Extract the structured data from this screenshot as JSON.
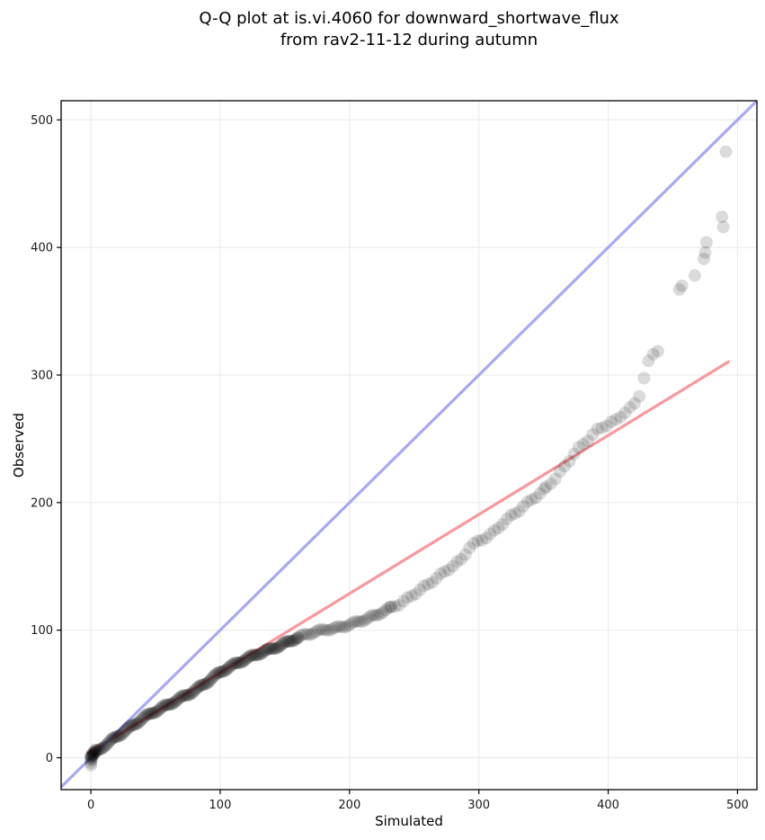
{
  "chart_data": {
    "type": "scatter",
    "title_line1": "Q-Q plot at is.vi.4060 for downward_shortwave_flux",
    "title_line2": "from rav2-11-12 during autumn",
    "xlabel": "Simulated",
    "ylabel": "Observed",
    "xlim": [
      -23,
      515
    ],
    "ylim": [
      -25,
      515
    ],
    "xticks": [
      0,
      100,
      200,
      300,
      400,
      500
    ],
    "yticks": [
      0,
      100,
      200,
      300,
      400,
      500
    ],
    "grid": true,
    "grid_color": "#ededed",
    "legend": "none",
    "identity_line": {
      "equation": "y = x",
      "color": "#a9a9f0",
      "width": 3.2
    },
    "fit_line": {
      "slope": 0.62,
      "intercept": 4.7,
      "x_range": [
        -2,
        493
      ],
      "color": "#f9989d",
      "width": 3.2
    },
    "point_style": {
      "color": "#000000",
      "opacity": 0.14,
      "radius": 7
    },
    "qq_curve_control_points": [
      [
        0,
        0
      ],
      [
        10,
        9
      ],
      [
        20,
        17
      ],
      [
        30,
        24
      ],
      [
        40,
        31
      ],
      [
        50,
        36
      ],
      [
        60,
        41
      ],
      [
        70,
        47
      ],
      [
        80,
        53
      ],
      [
        90,
        60
      ],
      [
        100,
        67
      ],
      [
        110,
        72
      ],
      [
        120,
        77
      ],
      [
        130,
        82
      ],
      [
        140,
        86
      ],
      [
        150,
        90
      ],
      [
        160,
        94
      ],
      [
        170,
        97
      ],
      [
        180,
        100
      ],
      [
        190,
        102
      ],
      [
        200,
        105
      ],
      [
        210,
        108
      ],
      [
        220,
        111
      ],
      [
        230,
        116
      ],
      [
        240,
        121
      ],
      [
        250,
        129
      ],
      [
        260,
        136
      ],
      [
        270,
        143
      ],
      [
        280,
        150
      ],
      [
        286,
        154
      ],
      [
        293,
        165
      ],
      [
        300,
        170
      ],
      [
        310,
        176
      ],
      [
        320,
        186
      ],
      [
        330,
        193
      ],
      [
        340,
        201
      ],
      [
        350,
        209
      ],
      [
        358,
        218
      ],
      [
        366,
        228
      ],
      [
        375,
        241
      ],
      [
        383,
        248
      ],
      [
        391,
        256
      ],
      [
        400,
        261
      ],
      [
        406,
        264
      ],
      [
        412,
        270
      ],
      [
        418,
        275
      ],
      [
        423,
        281
      ],
      [
        427,
        296
      ],
      [
        430,
        307
      ],
      [
        433,
        316
      ],
      [
        437,
        318
      ],
      [
        441,
        323
      ]
    ],
    "dense_sampling": [
      {
        "x0": 0,
        "x1": 160,
        "step": 1.0
      },
      {
        "x0": 160,
        "x1": 232,
        "step": 2.0
      },
      {
        "x0": 232,
        "x1": 352,
        "step": 3.2
      },
      {
        "x0": 352,
        "x1": 441,
        "step": 3.6
      }
    ],
    "origin_cluster_points": [
      [
        0,
        -6
      ],
      [
        0,
        -4
      ],
      [
        0,
        -2
      ],
      [
        0,
        0
      ],
      [
        0,
        2
      ],
      [
        1,
        -1
      ],
      [
        1,
        1
      ],
      [
        1,
        3
      ],
      [
        2,
        2
      ],
      [
        2,
        4
      ],
      [
        3,
        4
      ],
      [
        3,
        6
      ],
      [
        4,
        6
      ]
    ],
    "upper_tail_points": [
      [
        455,
        367
      ],
      [
        457,
        370
      ],
      [
        467,
        378
      ],
      [
        474,
        391
      ],
      [
        475,
        396
      ],
      [
        476,
        404
      ],
      [
        489,
        416
      ],
      [
        488,
        424
      ],
      [
        491,
        475
      ]
    ]
  }
}
